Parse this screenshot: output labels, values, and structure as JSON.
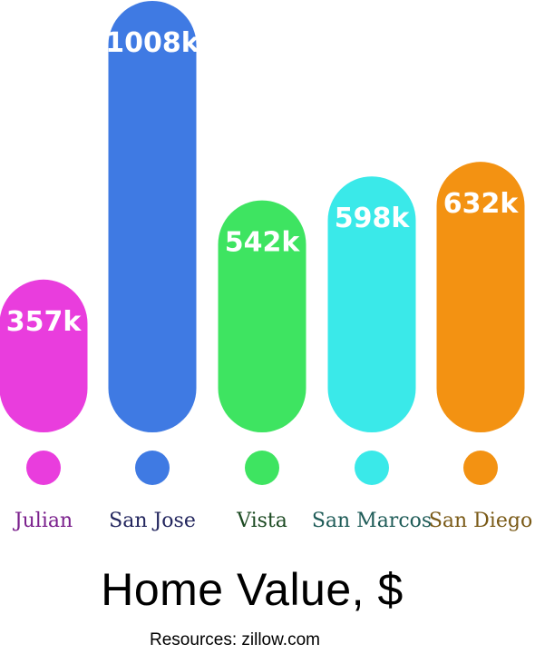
{
  "chart_data": {
    "type": "bar",
    "title": "Home Value, $",
    "source": "Resources: zillow.com",
    "categories": [
      "Julian",
      "San Jose",
      "Vista",
      "San Marcos",
      "San Diego"
    ],
    "values": [
      357,
      1008,
      542,
      598,
      632
    ],
    "value_labels": [
      "357k",
      "1008k",
      "542k",
      "598k",
      "632k"
    ],
    "bar_colors": [
      "#e93ddd",
      "#3f7ae3",
      "#3ee461",
      "#3ae9e9",
      "#f39212"
    ],
    "label_colors": [
      "#7a1f8c",
      "#23265e",
      "#1c4a22",
      "#1f5c58",
      "#7a5a17"
    ],
    "legend_markers": "colored dots under each bar",
    "grid": false,
    "axes_visible": false
  }
}
